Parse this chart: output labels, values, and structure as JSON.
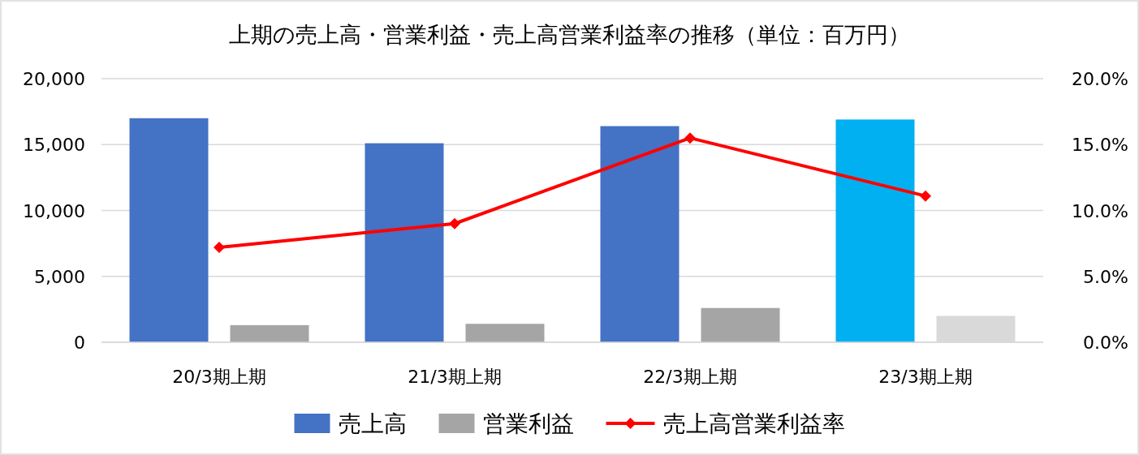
{
  "chart_data": {
    "type": "bar",
    "title": "上期の売上高・営業利益・売上高営業利益率の推移（単位：百万円）",
    "categories": [
      "20/3期上期",
      "21/3期上期",
      "22/3期上期",
      "23/3期上期"
    ],
    "series": [
      {
        "name": "売上高",
        "color": "#4472c4",
        "colors": [
          "#4472c4",
          "#4472c4",
          "#4472c4",
          "#00b0f0"
        ],
        "values": [
          17000,
          15100,
          16400,
          16900
        ]
      },
      {
        "name": "営業利益",
        "color": "#a5a5a5",
        "colors": [
          "#a5a5a5",
          "#a5a5a5",
          "#a5a5a5",
          "#d9d9d9"
        ],
        "values": [
          1300,
          1400,
          2600,
          2000
        ]
      },
      {
        "name": "売上高営業利益率",
        "type": "line",
        "axis": "y2",
        "color": "#ff0000",
        "marker": "diamond",
        "values": [
          7.2,
          9.0,
          15.5,
          11.1
        ]
      }
    ],
    "ylim": [
      0,
      20000
    ],
    "yticks": [
      {
        "value": 0,
        "label": "0"
      },
      {
        "value": 5000,
        "label": "5,000"
      },
      {
        "value": 10000,
        "label": "10,000"
      },
      {
        "value": 15000,
        "label": "15,000"
      },
      {
        "value": 20000,
        "label": "20,000"
      }
    ],
    "y2lim": [
      0,
      20
    ],
    "y2ticks": [
      {
        "value": 0,
        "label": "0.0%"
      },
      {
        "value": 5,
        "label": "5.0%"
      },
      {
        "value": 10,
        "label": "10.0%"
      },
      {
        "value": 15,
        "label": "15.0%"
      },
      {
        "value": 20,
        "label": "20.0%"
      }
    ],
    "grid": "y",
    "legend": "bottom"
  }
}
